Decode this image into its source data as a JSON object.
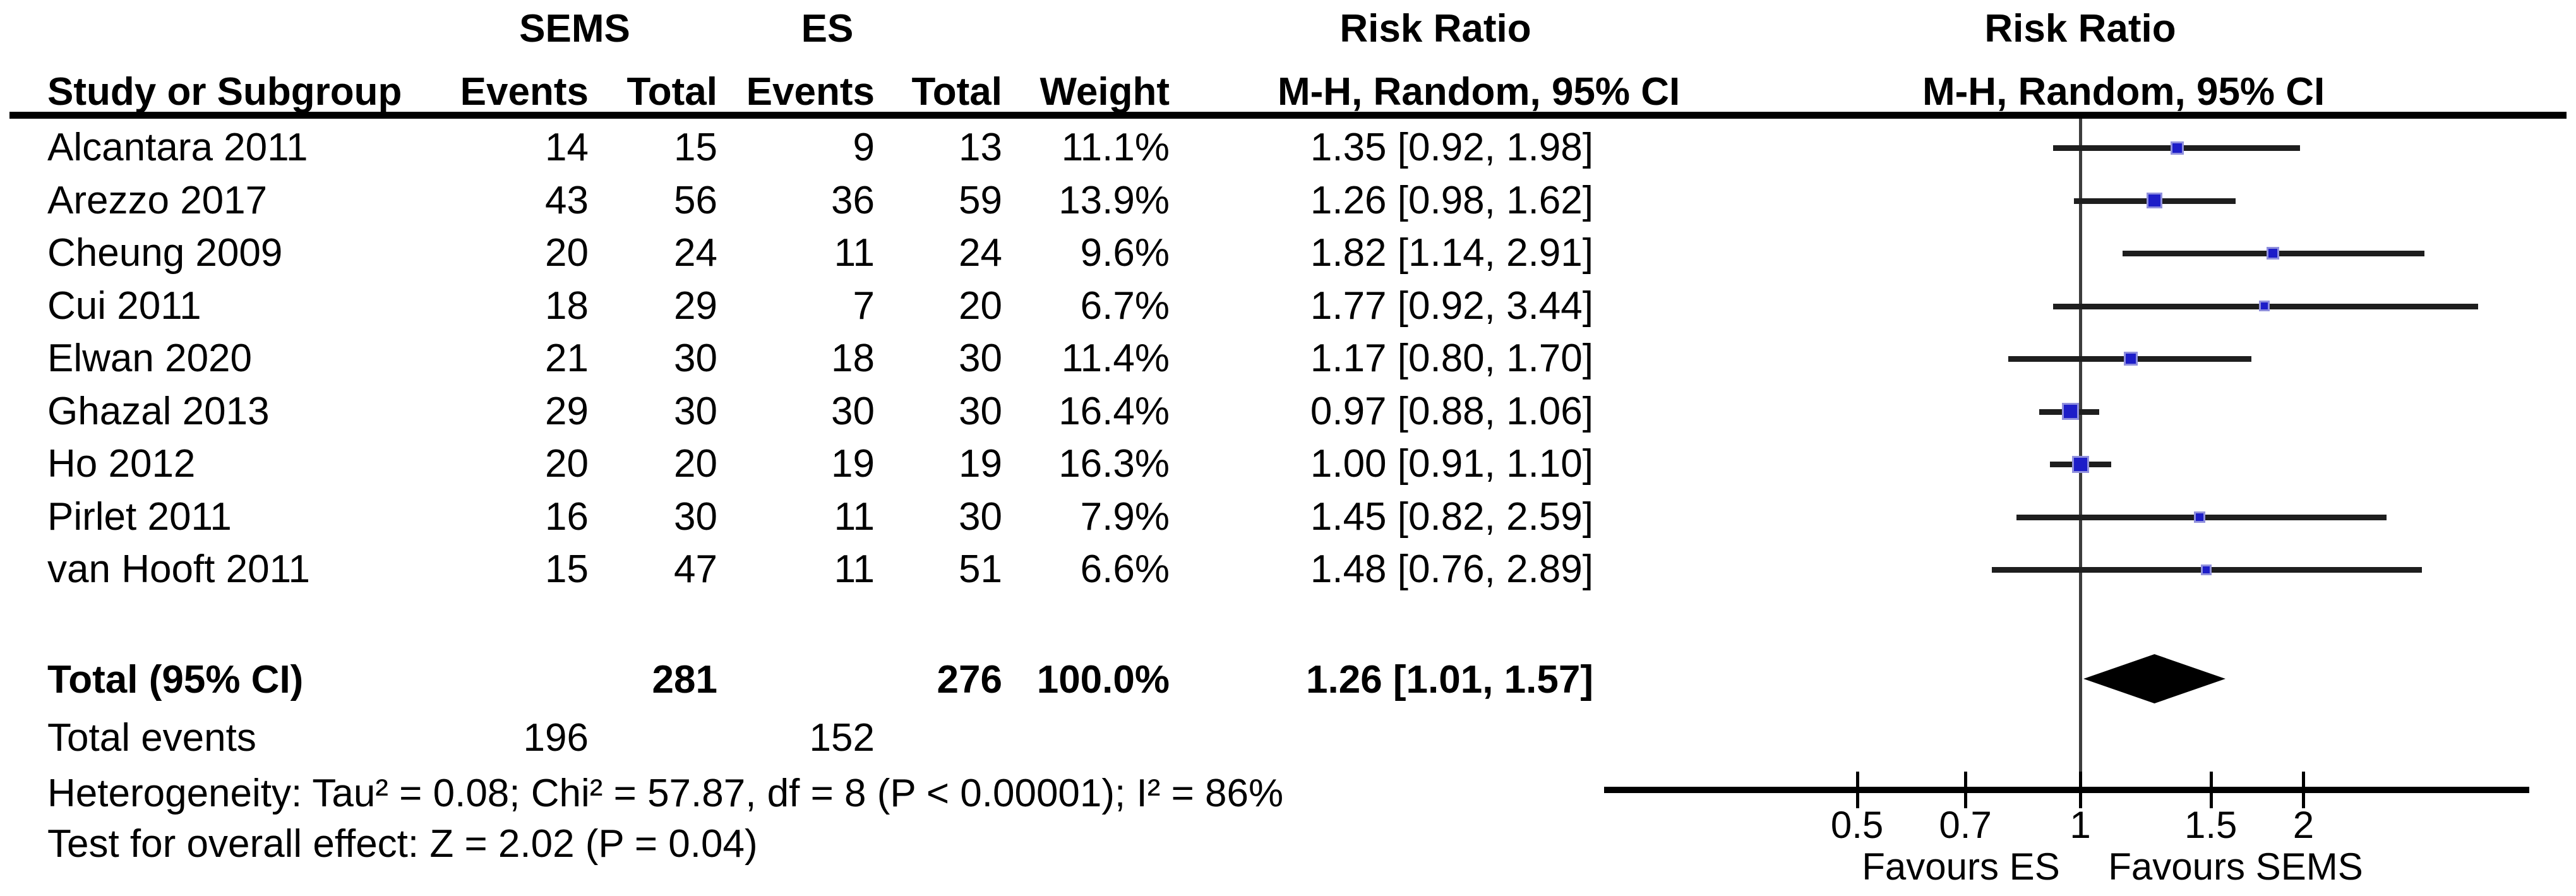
{
  "table": {
    "group_headers": {
      "sems": "SEMS",
      "es": "ES",
      "risk_ratio": "Risk Ratio"
    },
    "columns": {
      "study": "Study or Subgroup",
      "events": "Events",
      "total": "Total",
      "weight": "Weight",
      "mh": "M-H, Random, 95% CI"
    },
    "studies": [
      {
        "name": "Alcantara 2011",
        "sems_events": "14",
        "sems_total": "15",
        "es_events": "9",
        "es_total": "13",
        "weight": "11.1%",
        "ci_text": "1.35 [0.92, 1.98]",
        "rr": 1.35,
        "lo": 0.92,
        "hi": 1.98,
        "weight_pct": 11.1
      },
      {
        "name": "Arezzo 2017",
        "sems_events": "43",
        "sems_total": "56",
        "es_events": "36",
        "es_total": "59",
        "weight": "13.9%",
        "ci_text": "1.26 [0.98, 1.62]",
        "rr": 1.26,
        "lo": 0.98,
        "hi": 1.62,
        "weight_pct": 13.9
      },
      {
        "name": "Cheung 2009",
        "sems_events": "20",
        "sems_total": "24",
        "es_events": "11",
        "es_total": "24",
        "weight": "9.6%",
        "ci_text": "1.82 [1.14, 2.91]",
        "rr": 1.82,
        "lo": 1.14,
        "hi": 2.91,
        "weight_pct": 9.6
      },
      {
        "name": "Cui 2011",
        "sems_events": "18",
        "sems_total": "29",
        "es_events": "7",
        "es_total": "20",
        "weight": "6.7%",
        "ci_text": "1.77 [0.92, 3.44]",
        "rr": 1.77,
        "lo": 0.92,
        "hi": 3.44,
        "weight_pct": 6.7
      },
      {
        "name": "Elwan 2020",
        "sems_events": "21",
        "sems_total": "30",
        "es_events": "18",
        "es_total": "30",
        "weight": "11.4%",
        "ci_text": "1.17 [0.80, 1.70]",
        "rr": 1.17,
        "lo": 0.8,
        "hi": 1.7,
        "weight_pct": 11.4
      },
      {
        "name": "Ghazal 2013",
        "sems_events": "29",
        "sems_total": "30",
        "es_events": "30",
        "es_total": "30",
        "weight": "16.4%",
        "ci_text": "0.97 [0.88, 1.06]",
        "rr": 0.97,
        "lo": 0.88,
        "hi": 1.06,
        "weight_pct": 16.4
      },
      {
        "name": "Ho 2012",
        "sems_events": "20",
        "sems_total": "20",
        "es_events": "19",
        "es_total": "19",
        "weight": "16.3%",
        "ci_text": "1.00 [0.91, 1.10]",
        "rr": 1.0,
        "lo": 0.91,
        "hi": 1.1,
        "weight_pct": 16.3
      },
      {
        "name": "Pirlet 2011",
        "sems_events": "16",
        "sems_total": "30",
        "es_events": "11",
        "es_total": "30",
        "weight": "7.9%",
        "ci_text": "1.45 [0.82, 2.59]",
        "rr": 1.45,
        "lo": 0.82,
        "hi": 2.59,
        "weight_pct": 7.9
      },
      {
        "name": "van Hooft 2011",
        "sems_events": "15",
        "sems_total": "47",
        "es_events": "11",
        "es_total": "51",
        "weight": "6.6%",
        "ci_text": "1.48 [0.76, 2.89]",
        "rr": 1.48,
        "lo": 0.76,
        "hi": 2.89,
        "weight_pct": 6.6
      }
    ],
    "total_row": {
      "label": "Total (95% CI)",
      "sems_total": "281",
      "es_total": "276",
      "weight": "100.0%",
      "ci_text": "1.26 [1.01, 1.57]",
      "rr": 1.26,
      "lo": 1.01,
      "hi": 1.57
    },
    "total_events": {
      "label": "Total events",
      "sems": "196",
      "es": "152"
    },
    "heterogeneity": "Heterogeneity: Tau² = 0.08; Chi² = 57.87, df = 8 (P < 0.00001); I² = 86%",
    "overall_effect": "Test for overall effect: Z = 2.02 (P = 0.04)"
  },
  "plot": {
    "ticks": [
      {
        "v": 0.5,
        "label": "0.5"
      },
      {
        "v": 0.7,
        "label": "0.7"
      },
      {
        "v": 1,
        "label": "1"
      },
      {
        "v": 1.5,
        "label": "1.5"
      },
      {
        "v": 2,
        "label": "2"
      }
    ],
    "favours_left": "Favours ES",
    "favours_right": "Favours SEMS",
    "colors": {
      "square": "#1d1dc8",
      "diamond": "#000000",
      "ci_line": "#1e1e1e",
      "axis": "#000000"
    }
  },
  "chart_data": {
    "type": "forest",
    "title": "Risk Ratio, M-H, Random, 95% CI — SEMS vs ES",
    "x_axis": {
      "scale": "log",
      "ticks": [
        0.5,
        0.7,
        1,
        1.5,
        2
      ],
      "null_line": 1,
      "range_shown": [
        0.45,
        4.0
      ]
    },
    "legend": {
      "left_label": "Favours ES",
      "right_label": "Favours SEMS"
    },
    "studies": [
      {
        "study": "Alcantara 2011",
        "sems_events": 14,
        "sems_total": 15,
        "es_events": 9,
        "es_total": 13,
        "weight_pct": 11.1,
        "rr": 1.35,
        "ci_low": 0.92,
        "ci_high": 1.98
      },
      {
        "study": "Arezzo 2017",
        "sems_events": 43,
        "sems_total": 56,
        "es_events": 36,
        "es_total": 59,
        "weight_pct": 13.9,
        "rr": 1.26,
        "ci_low": 0.98,
        "ci_high": 1.62
      },
      {
        "study": "Cheung 2009",
        "sems_events": 20,
        "sems_total": 24,
        "es_events": 11,
        "es_total": 24,
        "weight_pct": 9.6,
        "rr": 1.82,
        "ci_low": 1.14,
        "ci_high": 2.91
      },
      {
        "study": "Cui 2011",
        "sems_events": 18,
        "sems_total": 29,
        "es_events": 7,
        "es_total": 20,
        "weight_pct": 6.7,
        "rr": 1.77,
        "ci_low": 0.92,
        "ci_high": 3.44
      },
      {
        "study": "Elwan 2020",
        "sems_events": 21,
        "sems_total": 30,
        "es_events": 18,
        "es_total": 30,
        "weight_pct": 11.4,
        "rr": 1.17,
        "ci_low": 0.8,
        "ci_high": 1.7
      },
      {
        "study": "Ghazal 2013",
        "sems_events": 29,
        "sems_total": 30,
        "es_events": 30,
        "es_total": 30,
        "weight_pct": 16.4,
        "rr": 0.97,
        "ci_low": 0.88,
        "ci_high": 1.06
      },
      {
        "study": "Ho 2012",
        "sems_events": 20,
        "sems_total": 20,
        "es_events": 19,
        "es_total": 19,
        "weight_pct": 16.3,
        "rr": 1.0,
        "ci_low": 0.91,
        "ci_high": 1.1
      },
      {
        "study": "Pirlet 2011",
        "sems_events": 16,
        "sems_total": 30,
        "es_events": 11,
        "es_total": 30,
        "weight_pct": 7.9,
        "rr": 1.45,
        "ci_low": 0.82,
        "ci_high": 2.59
      },
      {
        "study": "van Hooft 2011",
        "sems_events": 15,
        "sems_total": 47,
        "es_events": 11,
        "es_total": 51,
        "weight_pct": 6.6,
        "rr": 1.48,
        "ci_low": 0.76,
        "ci_high": 2.89
      }
    ],
    "total": {
      "label": "Total (95% CI)",
      "sems_total": 281,
      "es_total": 276,
      "sems_events": 196,
      "es_events": 152,
      "weight_pct": 100.0,
      "rr": 1.26,
      "ci_low": 1.01,
      "ci_high": 1.57
    },
    "heterogeneity": {
      "tau2": 0.08,
      "chi2": 57.87,
      "df": 8,
      "p": "< 0.00001",
      "i2_pct": 86
    },
    "overall_effect": {
      "z": 2.02,
      "p": 0.04
    }
  }
}
